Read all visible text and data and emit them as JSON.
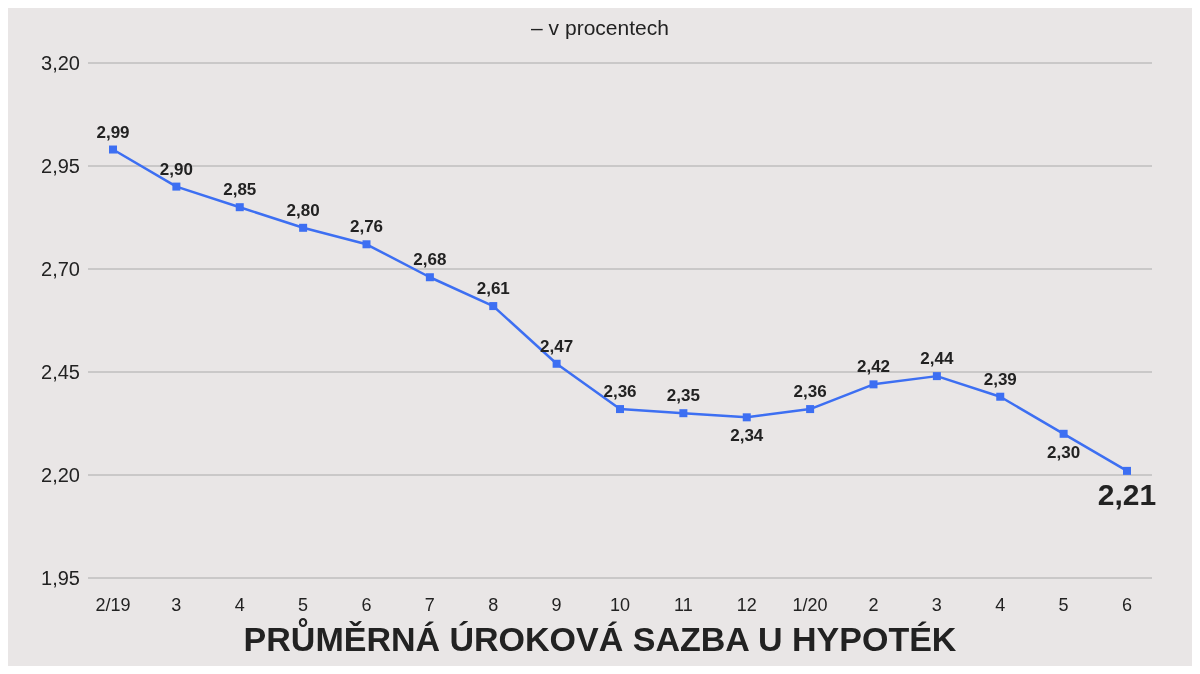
{
  "chart_data": {
    "type": "line",
    "title": "PRŮMĚRNÁ ÚROKOVÁ SAZBA U HYPOTÉK",
    "subtitle": "– v procentech",
    "categories": [
      "2/19",
      "3",
      "4",
      "5",
      "6",
      "7",
      "8",
      "9",
      "10",
      "11",
      "12",
      "1/20",
      "2",
      "3",
      "4",
      "5",
      "6"
    ],
    "series": [
      {
        "color": "#3d6ff2",
        "values": [
          2.99,
          2.9,
          2.85,
          2.8,
          2.76,
          2.68,
          2.61,
          2.47,
          2.36,
          2.35,
          2.34,
          2.36,
          2.42,
          2.44,
          2.39,
          2.3,
          2.21
        ],
        "value_labels": [
          "2,99",
          "2,90",
          "2,85",
          "2,80",
          "2,76",
          "2,68",
          "2,61",
          "2,47",
          "2,36",
          "2,35",
          "2,34",
          "2,36",
          "2,42",
          "2,44",
          "2,39",
          "2,30",
          "2,21"
        ]
      }
    ],
    "ylim": [
      1.95,
      3.2
    ],
    "yticks": [
      {
        "value": 1.95,
        "label": "1,95"
      },
      {
        "value": 2.2,
        "label": "2,20"
      },
      {
        "value": 2.45,
        "label": "2,45"
      },
      {
        "value": 2.7,
        "label": "2,70"
      },
      {
        "value": 2.95,
        "label": "2,95"
      },
      {
        "value": 3.2,
        "label": "3,20"
      }
    ],
    "grid": "y",
    "marker": "square",
    "line_style": "solid"
  }
}
